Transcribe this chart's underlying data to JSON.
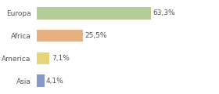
{
  "categories": [
    "Europa",
    "Africa",
    "America",
    "Asia"
  ],
  "values": [
    63.3,
    25.5,
    7.1,
    4.1
  ],
  "labels": [
    "63,3%",
    "25,5%",
    "7,1%",
    "4,1%"
  ],
  "bar_colors": [
    "#b5cc96",
    "#e8b080",
    "#e8d478",
    "#8898c4"
  ],
  "background_color": "#ffffff",
  "plot_bg_color": "#ffffff",
  "xlim": [
    0,
    100
  ],
  "bar_height": 0.55,
  "label_fontsize": 6.5,
  "category_fontsize": 6.5,
  "label_color": "#555555",
  "tick_color": "#888888",
  "grid_color": "#dddddd"
}
